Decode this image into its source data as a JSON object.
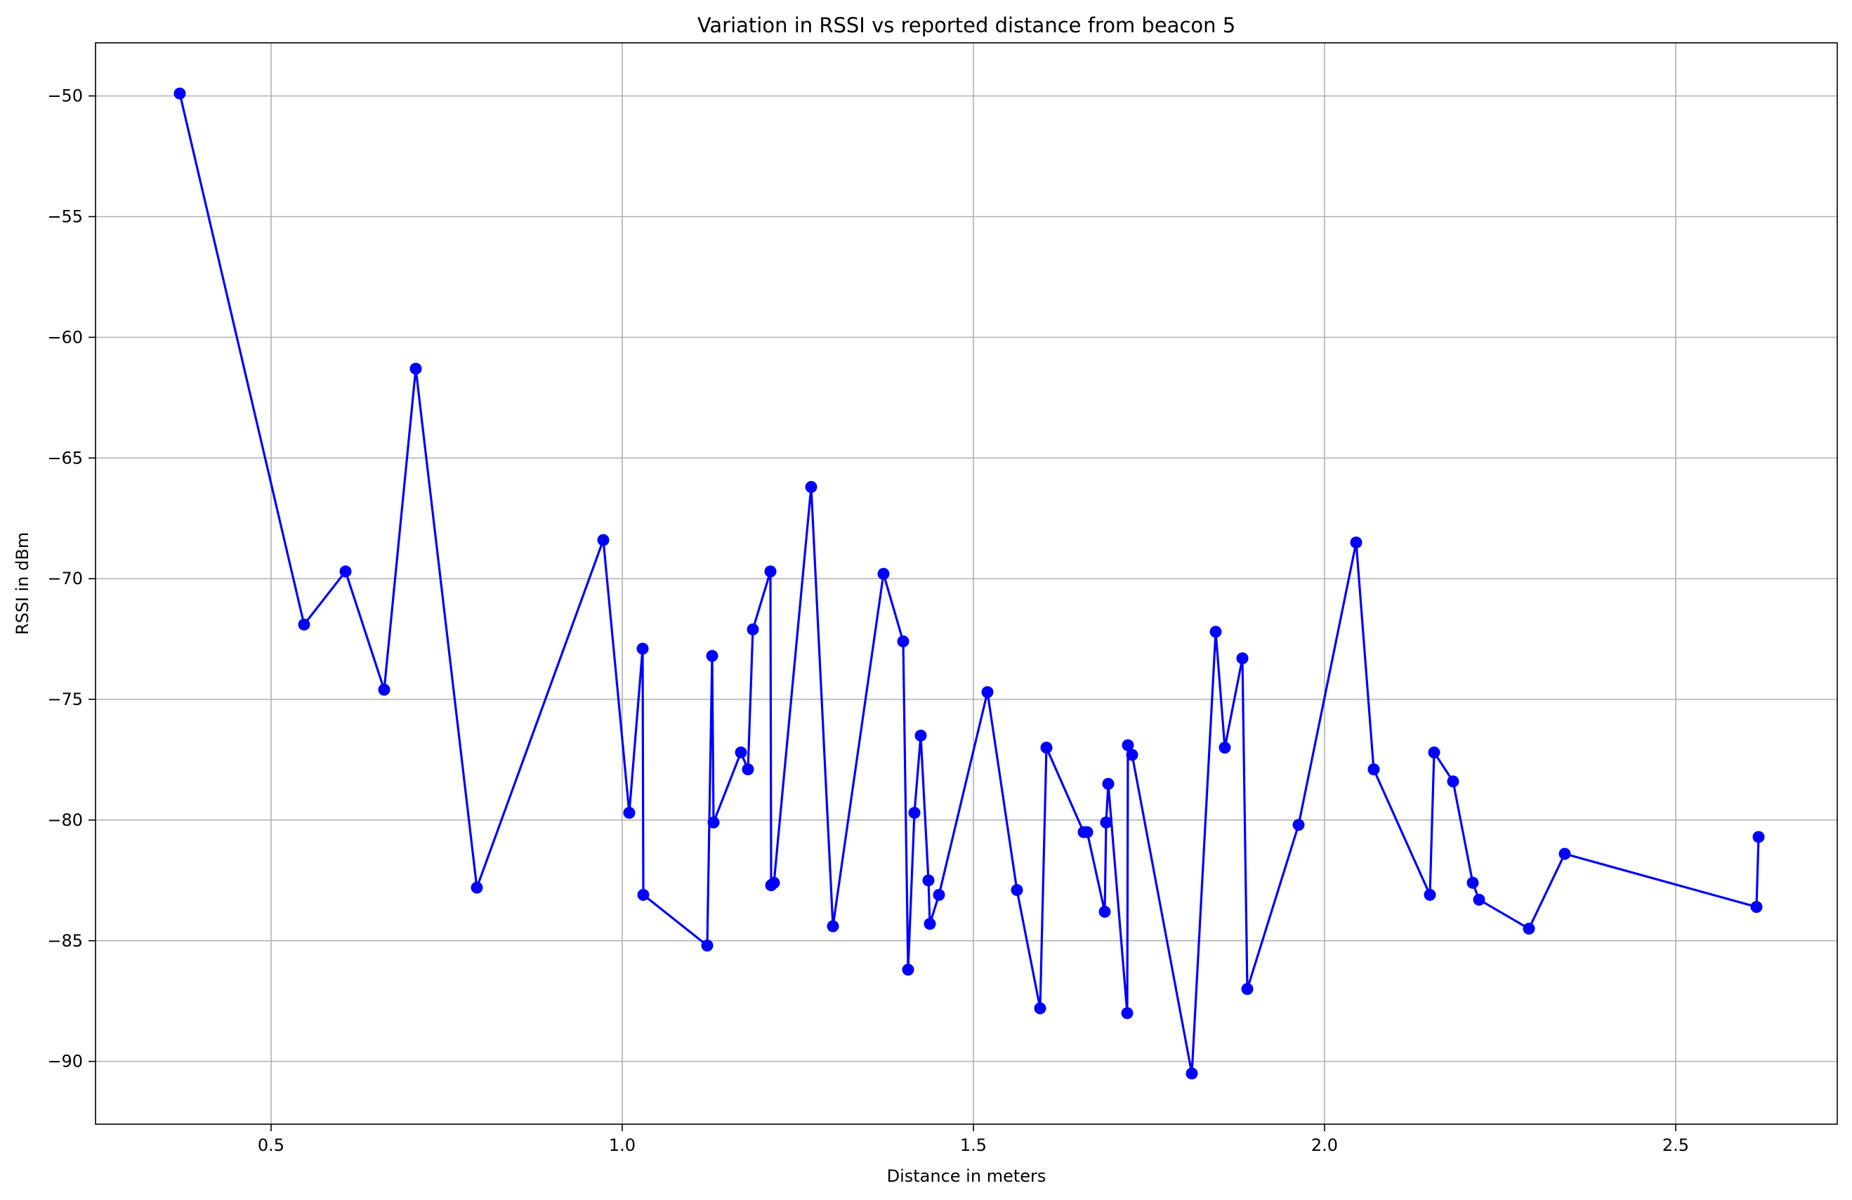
{
  "chart_data": {
    "type": "line",
    "title": "Variation in RSSI vs reported distance from beacon 5",
    "xlabel": "Distance in meters",
    "ylabel": "RSSI in dBm",
    "xlim": [
      0.25,
      2.73
    ],
    "ylim": [
      -92.6,
      -47.8
    ],
    "xticks": [
      0.5,
      1.0,
      1.5,
      2.0,
      2.5
    ],
    "xtick_labels": [
      "0.5",
      "1.0",
      "1.5",
      "2.0",
      "2.5"
    ],
    "yticks": [
      -50,
      -55,
      -60,
      -65,
      -70,
      -75,
      -80,
      -85,
      -90
    ],
    "ytick_labels": [
      "−50",
      "−55",
      "−60",
      "−65",
      "−70",
      "−75",
      "−80",
      "−85",
      "−90"
    ],
    "grid": true,
    "color": "#0000ff",
    "marker": "circle",
    "series": [
      {
        "x": [
          0.37,
          0.547,
          0.606,
          0.661,
          0.706,
          0.793,
          0.973,
          1.01,
          1.029,
          1.03,
          1.121,
          1.128,
          1.13,
          1.169,
          1.179,
          1.186,
          1.211,
          1.212,
          1.216,
          1.269,
          1.3,
          1.372,
          1.4,
          1.407,
          1.416,
          1.425,
          1.436,
          1.438,
          1.451,
          1.52,
          1.562,
          1.595,
          1.604,
          1.657,
          1.662,
          1.687,
          1.689,
          1.692,
          1.719,
          1.72,
          1.726,
          1.811,
          1.845,
          1.858,
          1.883,
          1.89,
          1.963,
          2.045,
          2.07,
          2.15,
          2.156,
          2.183,
          2.211,
          2.22,
          2.291,
          2.342,
          2.615,
          2.618
        ],
        "y": [
          -49.9,
          -71.9,
          -69.7,
          -74.6,
          -61.3,
          -82.8,
          -68.4,
          -79.7,
          -72.9,
          -83.1,
          -85.2,
          -73.2,
          -80.1,
          -77.2,
          -77.9,
          -72.1,
          -69.7,
          -82.7,
          -82.6,
          -66.2,
          -84.4,
          -69.8,
          -72.6,
          -86.2,
          -79.7,
          -76.5,
          -82.5,
          -84.3,
          -83.1,
          -74.7,
          -82.9,
          -87.8,
          -77.0,
          -80.5,
          -80.5,
          -83.8,
          -80.1,
          -78.5,
          -88.0,
          -76.9,
          -77.3,
          -90.5,
          -72.2,
          -77.0,
          -73.3,
          -87.0,
          -80.2,
          -68.5,
          -77.9,
          -83.1,
          -77.2,
          -78.4,
          -82.6,
          -83.3,
          -84.5,
          -81.4,
          -83.6,
          -80.7
        ]
      }
    ]
  }
}
